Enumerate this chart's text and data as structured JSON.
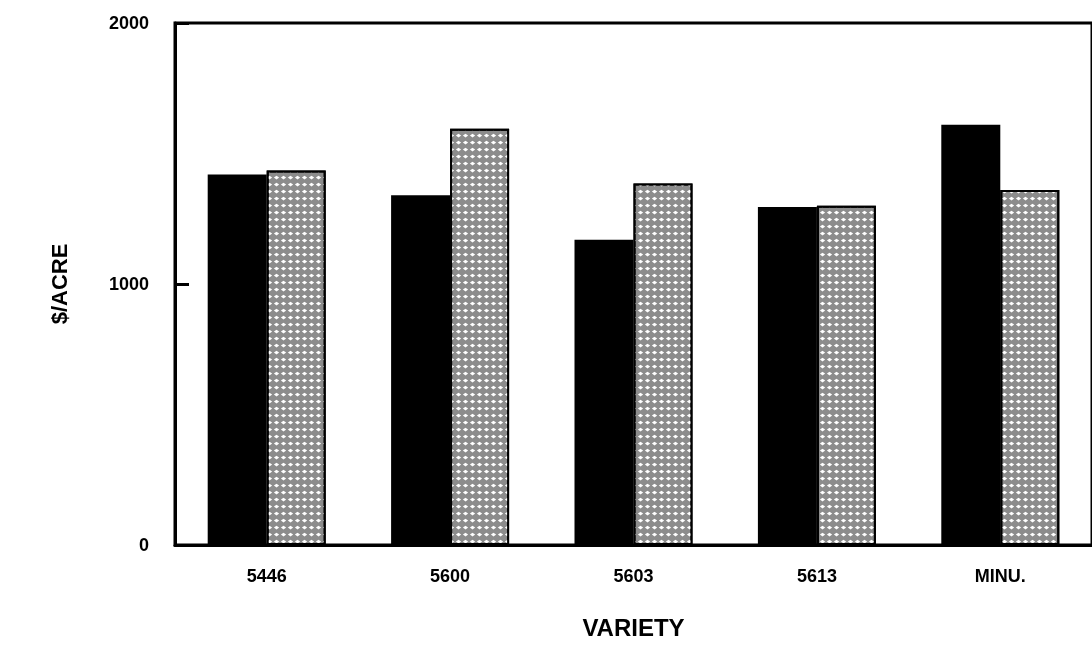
{
  "chart_data": {
    "type": "bar",
    "xlabel": "VARIETY",
    "ylabel": "$/ACRE",
    "categories": [
      "5446",
      "5600",
      "5603",
      "5613",
      "MINU."
    ],
    "series": [
      {
        "color": "#000000",
        "values": [
          1420,
          1340,
          1170,
          1295,
          1610
        ]
      },
      {
        "color": "#8c8c8c",
        "values": [
          1435,
          1595,
          1385,
          1300,
          1360
        ]
      }
    ],
    "ylim": [
      0,
      2000
    ],
    "yticks": [
      0,
      1000,
      2000
    ]
  }
}
